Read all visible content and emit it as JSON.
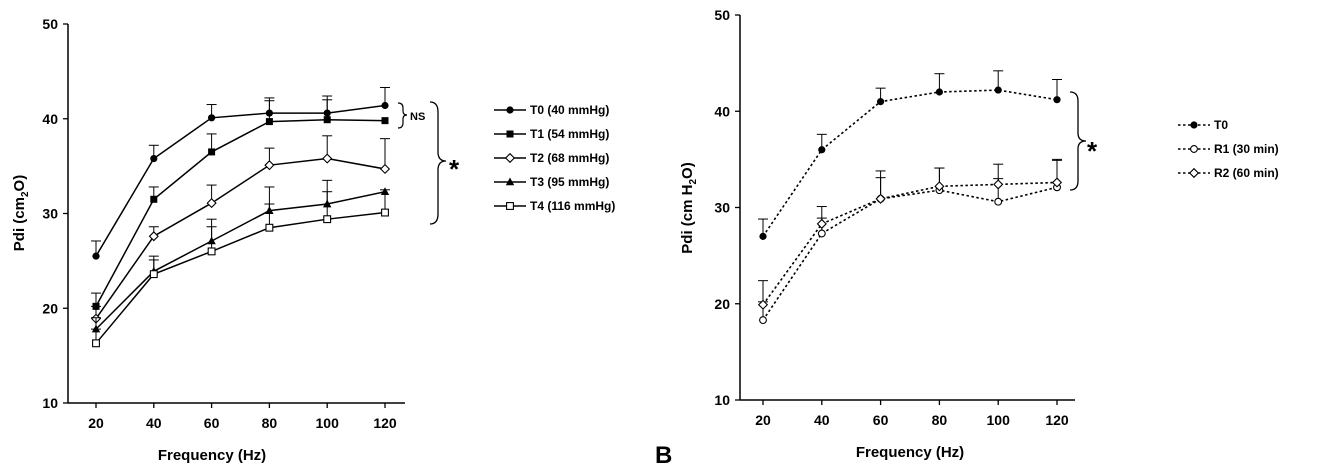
{
  "chart_data": [
    {
      "type": "line",
      "panel_label": "",
      "xlabel": "Frequency (Hz)",
      "ylabel": "Pdi (cm2O)",
      "ylabel_main": "Pdi (cm",
      "ylabel_sub": "2",
      "ylabel_tail": "O)",
      "x": [
        20,
        40,
        60,
        80,
        100,
        120
      ],
      "x_ticks": [
        "20",
        "40",
        "60",
        "80",
        "100",
        "120"
      ],
      "ylim": [
        10,
        50
      ],
      "y_ticks": [
        "10",
        "20",
        "30",
        "40",
        "50"
      ],
      "legend_position": "right",
      "series": [
        {
          "name": "T0 (40 mmHg)",
          "marker": "filled-circle",
          "line": "solid",
          "values": [
            25.5,
            35.8,
            40.1,
            40.6,
            40.6,
            41.4
          ],
          "errors": [
            1.6,
            1.4,
            1.4,
            1.6,
            1.8,
            1.9
          ]
        },
        {
          "name": "T1 (54 mmHg)",
          "marker": "filled-square",
          "line": "solid",
          "values": [
            20.2,
            31.5,
            36.5,
            39.7,
            39.9,
            39.8
          ],
          "errors": [
            1.4,
            1.3,
            1.9,
            2.2,
            2.1,
            0
          ]
        },
        {
          "name": "T2 (68 mmHg)",
          "marker": "open-diamond",
          "line": "solid",
          "values": [
            18.9,
            27.6,
            31.1,
            35.1,
            35.8,
            34.7
          ],
          "errors": [
            1.3,
            1.0,
            1.9,
            1.8,
            2.4,
            3.2
          ]
        },
        {
          "name": "T3 (95 mmHg)",
          "marker": "filled-triangle",
          "line": "solid",
          "values": [
            17.8,
            23.9,
            27.1,
            30.3,
            31.0,
            32.3
          ],
          "errors": [
            1.2,
            1.6,
            2.3,
            2.5,
            2.5,
            0
          ]
        },
        {
          "name": "T4 (116 mmHg)",
          "marker": "open-square",
          "line": "solid",
          "values": [
            16.3,
            23.6,
            26.0,
            28.5,
            29.4,
            30.1
          ],
          "errors": [
            1.5,
            1.5,
            2.6,
            2.5,
            2.9,
            2.4
          ]
        }
      ],
      "annotations": {
        "ns": "NS",
        "star": "*"
      }
    },
    {
      "type": "line",
      "panel_label": "B",
      "xlabel": "Frequency (Hz)",
      "ylabel": "Pdi (cm H2O)",
      "ylabel_main": "Pdi (cm H",
      "ylabel_sub": "2",
      "ylabel_tail": "O)",
      "x": [
        20,
        40,
        60,
        80,
        100,
        120
      ],
      "x_ticks": [
        "20",
        "40",
        "60",
        "80",
        "100",
        "120"
      ],
      "ylim": [
        10,
        50
      ],
      "y_ticks": [
        "10",
        "20",
        "30",
        "40",
        "50"
      ],
      "legend_position": "right",
      "series": [
        {
          "name": "T0",
          "marker": "filled-circle",
          "line": "dotted",
          "values": [
            27.0,
            36.0,
            41.0,
            42.0,
            42.2,
            41.2
          ],
          "errors": [
            1.8,
            1.6,
            1.4,
            1.9,
            2.0,
            2.1
          ]
        },
        {
          "name": "R1 (30 min)",
          "marker": "open-circle",
          "line": "dotted",
          "values": [
            18.3,
            27.3,
            30.9,
            31.8,
            30.6,
            32.1
          ],
          "errors": [
            1.9,
            1.6,
            2.2,
            2.3,
            2.4,
            2.8
          ]
        },
        {
          "name": "R2 (60 min)",
          "marker": "open-diamond",
          "line": "dotted",
          "values": [
            19.9,
            28.3,
            30.9,
            32.2,
            32.4,
            32.6
          ],
          "errors": [
            2.5,
            1.8,
            2.9,
            1.9,
            2.1,
            2.4
          ]
        }
      ],
      "annotations": {
        "star": "*"
      }
    }
  ]
}
